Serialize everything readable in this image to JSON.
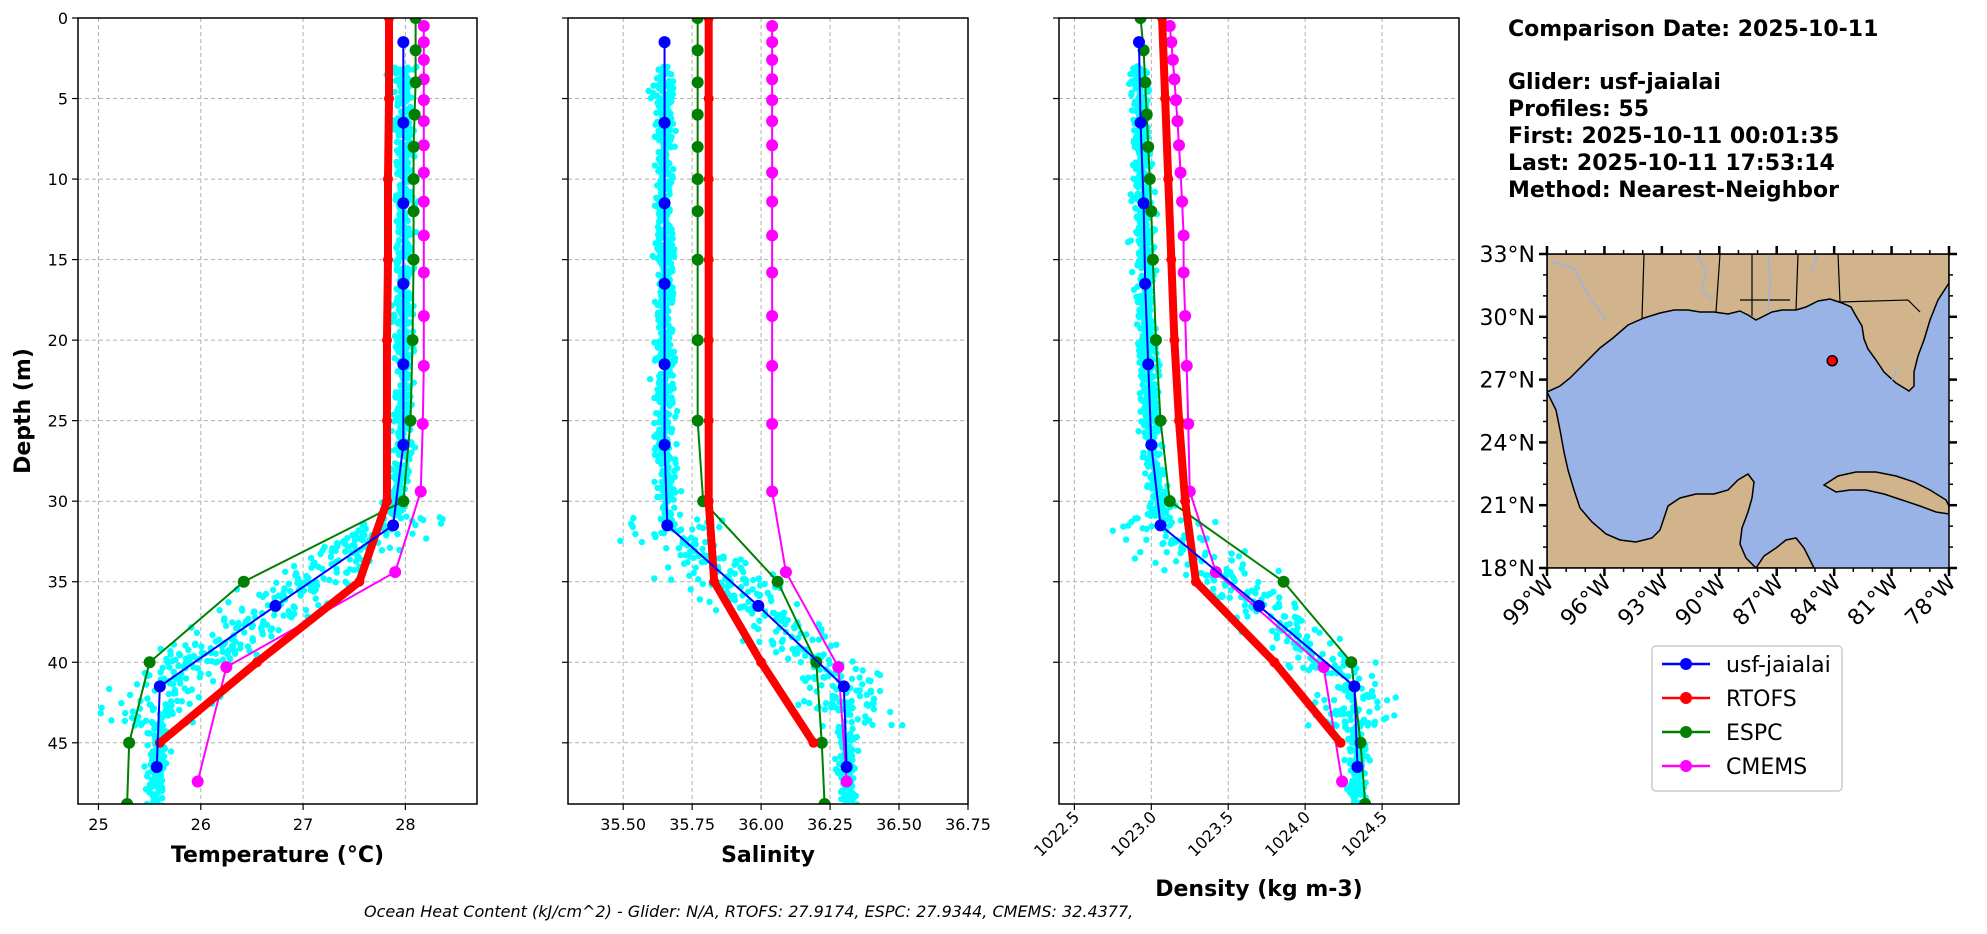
{
  "info": {
    "comparison_date": "Comparison Date: 2025-10-11",
    "glider": "Glider: usf-jaialai",
    "profiles": "Profiles: 55",
    "first": "First: 2025-10-11 00:01:35",
    "last": "Last: 2025-10-11 17:53:14",
    "method": "Method: Nearest-Neighbor"
  },
  "footer": "Ocean Heat Content (kJ/cm^2) - Glider: N/A,  RTOFS: 27.9174,  ESPC: 27.9344,  CMEMS: 32.4377,",
  "colors": {
    "glider_obs": "#00ffff",
    "glider": "#0000ff",
    "rtofs": "#ff0000",
    "espc": "#008000",
    "cmems": "#ff00ff",
    "land": "#d2b48c",
    "ocean": "#99b3e6"
  },
  "map": {
    "lat_ticks": [
      "33°N",
      "30°N",
      "27°N",
      "24°N",
      "21°N",
      "18°N"
    ],
    "lon_ticks": [
      "99°W",
      "96°W",
      "93°W",
      "90°W",
      "87°W",
      "84°W",
      "81°W",
      "78°W"
    ],
    "glider_position": {
      "lon": -84.1,
      "lat": 27.9
    }
  },
  "legend": [
    "usf-jaialai",
    "RTOFS",
    "ESPC",
    "CMEMS"
  ],
  "chart_data": [
    {
      "type": "line",
      "xlabel": "Temperature (°C)",
      "ylabel": "Depth (m)",
      "xlim": [
        24.8,
        28.7
      ],
      "ylim": [
        48.8,
        0
      ],
      "xticks": [
        25,
        26,
        27,
        28
      ],
      "xtick_labels": [
        "25",
        "26",
        "27",
        "28"
      ],
      "yticks": [
        0,
        5,
        10,
        15,
        20,
        25,
        30,
        35,
        40,
        45
      ],
      "yticks_labels": [
        "0",
        "5",
        "10",
        "15",
        "20",
        "25",
        "30",
        "35",
        "40",
        "45"
      ],
      "grid": true,
      "series": [
        {
          "name": "usf-jaialai",
          "depth": [
            1.5,
            6.5,
            11.5,
            16.5,
            21.5,
            26.5,
            31.5,
            36.5,
            41.5,
            46.5
          ],
          "values": [
            27.98,
            27.98,
            27.98,
            27.98,
            27.98,
            27.98,
            27.88,
            26.73,
            25.6,
            25.57
          ]
        },
        {
          "name": "RTOFS",
          "depth": [
            0,
            5,
            10,
            15,
            20,
            25,
            30,
            35,
            40,
            45
          ],
          "values": [
            27.84,
            27.84,
            27.83,
            27.83,
            27.82,
            27.82,
            27.82,
            27.55,
            26.55,
            25.6
          ]
        },
        {
          "name": "ESPC",
          "depth": [
            0,
            2,
            4,
            6,
            8,
            10,
            12,
            15,
            20,
            25,
            30,
            35,
            40,
            45,
            48.8
          ],
          "values": [
            28.1,
            28.1,
            28.1,
            28.09,
            28.08,
            28.08,
            28.08,
            28.08,
            28.07,
            28.05,
            27.98,
            26.42,
            25.5,
            25.3,
            25.28
          ]
        },
        {
          "name": "CMEMS",
          "depth": [
            0.5,
            1.5,
            2.6,
            3.8,
            5.1,
            6.4,
            7.9,
            9.6,
            11.4,
            13.5,
            15.8,
            18.5,
            21.6,
            25.2,
            29.4,
            34.4,
            40.3,
            47.4
          ],
          "values": [
            28.18,
            28.18,
            28.18,
            28.18,
            28.18,
            28.18,
            28.18,
            28.18,
            28.18,
            28.18,
            28.18,
            28.18,
            28.18,
            28.17,
            28.15,
            27.9,
            26.25,
            25.97
          ]
        }
      ]
    },
    {
      "type": "line",
      "xlabel": "Salinity",
      "ylabel": "",
      "xlim": [
        35.3,
        36.75
      ],
      "ylim": [
        48.8,
        0
      ],
      "xticks": [
        35.5,
        35.75,
        36.0,
        36.25,
        36.5,
        36.75
      ],
      "xtick_labels": [
        "35.50",
        "35.75",
        "36.00",
        "36.25",
        "36.50",
        "36.75"
      ],
      "yticks": [
        0,
        5,
        10,
        15,
        20,
        25,
        30,
        35,
        40,
        45
      ],
      "grid": true,
      "series": [
        {
          "name": "usf-jaialai",
          "depth": [
            1.5,
            6.5,
            11.5,
            16.5,
            21.5,
            26.5,
            31.5,
            36.5,
            41.5,
            46.5
          ],
          "values": [
            35.65,
            35.65,
            35.65,
            35.65,
            35.65,
            35.65,
            35.66,
            35.99,
            36.3,
            36.31
          ]
        },
        {
          "name": "RTOFS",
          "depth": [
            0,
            5,
            10,
            15,
            20,
            25,
            30,
            35,
            40,
            45
          ],
          "values": [
            35.81,
            35.81,
            35.81,
            35.81,
            35.81,
            35.81,
            35.81,
            35.83,
            36.0,
            36.19
          ]
        },
        {
          "name": "ESPC",
          "depth": [
            0,
            2,
            4,
            6,
            8,
            10,
            12,
            15,
            20,
            25,
            30,
            35,
            40,
            45,
            48.8
          ],
          "values": [
            35.77,
            35.77,
            35.77,
            35.77,
            35.77,
            35.77,
            35.77,
            35.77,
            35.77,
            35.77,
            35.79,
            36.06,
            36.2,
            36.22,
            36.23
          ]
        },
        {
          "name": "CMEMS",
          "depth": [
            0.5,
            1.5,
            2.6,
            3.8,
            5.1,
            6.4,
            7.9,
            9.6,
            11.4,
            13.5,
            15.8,
            18.5,
            21.6,
            25.2,
            29.4,
            34.4,
            40.3,
            47.4
          ],
          "values": [
            36.04,
            36.04,
            36.04,
            36.04,
            36.04,
            36.04,
            36.04,
            36.04,
            36.04,
            36.04,
            36.04,
            36.04,
            36.04,
            36.04,
            36.04,
            36.09,
            36.28,
            36.31
          ]
        }
      ]
    },
    {
      "type": "line",
      "xlabel": "Density (kg m-3)",
      "ylabel": "",
      "xlim": [
        1022.4,
        1025.0
      ],
      "ylim": [
        48.8,
        0
      ],
      "xticks": [
        1022.5,
        1023.0,
        1023.5,
        1024.0,
        1024.5
      ],
      "xtick_labels": [
        "1022.5",
        "1023.0",
        "1023.5",
        "1024.0",
        "1024.5"
      ],
      "yticks": [
        0,
        5,
        10,
        15,
        20,
        25,
        30,
        35,
        40,
        45
      ],
      "grid": true,
      "series": [
        {
          "name": "usf-jaialai",
          "depth": [
            1.5,
            6.5,
            11.5,
            16.5,
            21.5,
            26.5,
            31.5,
            36.5,
            41.5,
            46.5
          ],
          "values": [
            1022.92,
            1022.93,
            1022.95,
            1022.96,
            1022.98,
            1023.0,
            1023.06,
            1023.7,
            1024.32,
            1024.34
          ]
        },
        {
          "name": "RTOFS",
          "depth": [
            0,
            5,
            10,
            15,
            20,
            25,
            30,
            35,
            40,
            45
          ],
          "values": [
            1023.07,
            1023.09,
            1023.11,
            1023.13,
            1023.15,
            1023.18,
            1023.22,
            1023.29,
            1023.8,
            1024.23
          ]
        },
        {
          "name": "ESPC",
          "depth": [
            0,
            2,
            4,
            6,
            8,
            10,
            12,
            15,
            20,
            25,
            30,
            35,
            40,
            45,
            48.8
          ],
          "values": [
            1022.93,
            1022.95,
            1022.96,
            1022.97,
            1022.98,
            1022.99,
            1023.0,
            1023.01,
            1023.03,
            1023.06,
            1023.12,
            1023.86,
            1024.3,
            1024.36,
            1024.39
          ]
        },
        {
          "name": "CMEMS",
          "depth": [
            0.5,
            1.5,
            2.6,
            3.8,
            5.1,
            6.4,
            7.9,
            9.6,
            11.4,
            13.5,
            15.8,
            18.5,
            21.6,
            25.2,
            29.4,
            34.4,
            40.3,
            47.4
          ],
          "values": [
            1023.12,
            1023.13,
            1023.14,
            1023.15,
            1023.16,
            1023.17,
            1023.18,
            1023.19,
            1023.2,
            1023.21,
            1023.21,
            1023.22,
            1023.23,
            1023.24,
            1023.25,
            1023.42,
            1024.12,
            1024.24
          ]
        }
      ]
    }
  ]
}
